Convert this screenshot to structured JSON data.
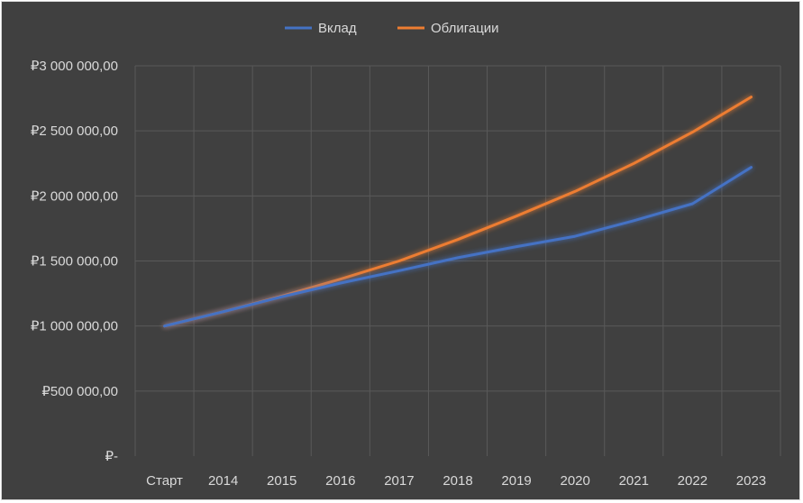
{
  "chart_data": {
    "type": "line",
    "categories": [
      "Старт",
      "2014",
      "2015",
      "2016",
      "2017",
      "2018",
      "2019",
      "2020",
      "2021",
      "2022",
      "2023"
    ],
    "series": [
      {
        "name": "Вклад",
        "color": "#4472c4",
        "values": [
          1000000,
          1110000,
          1225000,
          1330000,
          1425000,
          1525000,
          1610000,
          1690000,
          1810000,
          1940000,
          2220000
        ]
      },
      {
        "name": "Облигации",
        "color": "#ed7d31",
        "values": [
          1000000,
          1110000,
          1230000,
          1360000,
          1500000,
          1665000,
          1845000,
          2035000,
          2250000,
          2490000,
          2760000
        ]
      }
    ],
    "y_ticks": [
      {
        "value": 0,
        "label": "₽-"
      },
      {
        "value": 500000,
        "label": "₽500 000,00"
      },
      {
        "value": 1000000,
        "label": "₽1 000 000,00"
      },
      {
        "value": 1500000,
        "label": "₽1 500 000,00"
      },
      {
        "value": 2000000,
        "label": "₽2 000 000,00"
      },
      {
        "value": 2500000,
        "label": "₽2 500 000,00"
      },
      {
        "value": 3000000,
        "label": "₽3 000 000,00"
      }
    ],
    "ylim": [
      0,
      3000000
    ],
    "grid": true,
    "legend": "top",
    "background": "#404040",
    "grid_color": "#595959",
    "text_color": "#d9d9d9"
  }
}
